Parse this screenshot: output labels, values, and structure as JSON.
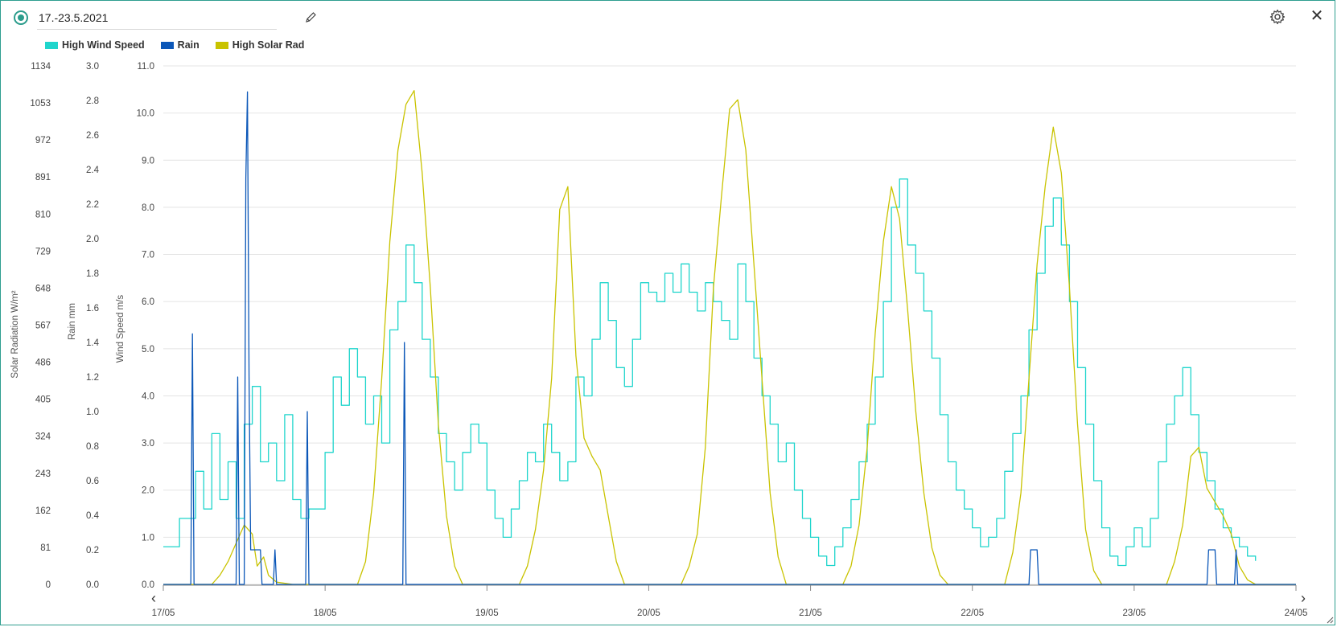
{
  "header": {
    "title": "17.-23.5.2021",
    "edit_icon": "pencil-icon",
    "settings_icon": "gear-icon",
    "close_icon": "close-icon",
    "close_glyph": "✕"
  },
  "colors": {
    "wind": "#1fd5cc",
    "rain": "#0b57b8",
    "solar": "#c9c300",
    "accent": "#2b9c8c",
    "grid": "#e4e4e4"
  },
  "chart_data": {
    "type": "line",
    "legend_position": "top-left",
    "grid": true,
    "series": [
      {
        "name": "High Wind Speed",
        "axis": "wind",
        "color": "#1fd5cc"
      },
      {
        "name": "Rain",
        "axis": "rain",
        "color": "#0b57b8"
      },
      {
        "name": "High Solar Rad",
        "axis": "solar",
        "color": "#c9c300"
      }
    ],
    "x_ticks": [
      "17/05",
      "18/05",
      "19/05",
      "20/05",
      "21/05",
      "22/05",
      "23/05",
      "24/05"
    ],
    "x_range": [
      "17/05",
      "24/05"
    ],
    "y_axes": {
      "solar": {
        "label": "Solar Radiation W/m²",
        "range": [
          0,
          1134
        ],
        "ticks": [
          "0",
          "81",
          "162",
          "243",
          "324",
          "405",
          "486",
          "567",
          "648",
          "729",
          "810",
          "891",
          "972",
          "1053",
          "1134"
        ]
      },
      "rain": {
        "label": "Rain mm",
        "range": [
          0,
          3.0
        ],
        "ticks": [
          "0.0",
          "0.2",
          "0.4",
          "0.6",
          "0.8",
          "1.0",
          "1.2",
          "1.4",
          "1.6",
          "1.8",
          "2.0",
          "2.2",
          "2.4",
          "2.6",
          "2.8",
          "3.0"
        ]
      },
      "wind": {
        "label": "Wind Speed m/s",
        "range": [
          0,
          11.0
        ],
        "ticks": [
          "0.0",
          "1.0",
          "2.0",
          "3.0",
          "4.0",
          "5.0",
          "6.0",
          "7.0",
          "8.0",
          "9.0",
          "10.0",
          "11.0"
        ]
      }
    },
    "wind_points": [
      [
        0.0,
        0.8
      ],
      [
        0.1,
        1.4
      ],
      [
        0.2,
        2.4
      ],
      [
        0.25,
        1.6
      ],
      [
        0.3,
        3.2
      ],
      [
        0.35,
        1.8
      ],
      [
        0.4,
        2.6
      ],
      [
        0.45,
        1.4
      ],
      [
        0.5,
        3.4
      ],
      [
        0.55,
        4.2
      ],
      [
        0.6,
        2.6
      ],
      [
        0.65,
        3.0
      ],
      [
        0.7,
        2.2
      ],
      [
        0.75,
        3.6
      ],
      [
        0.8,
        1.8
      ],
      [
        0.85,
        1.4
      ],
      [
        0.9,
        1.6
      ],
      [
        1.0,
        2.8
      ],
      [
        1.05,
        4.4
      ],
      [
        1.1,
        3.8
      ],
      [
        1.15,
        5.0
      ],
      [
        1.2,
        4.4
      ],
      [
        1.25,
        3.4
      ],
      [
        1.3,
        4.0
      ],
      [
        1.35,
        3.0
      ],
      [
        1.4,
        5.4
      ],
      [
        1.45,
        6.0
      ],
      [
        1.5,
        7.2
      ],
      [
        1.55,
        6.4
      ],
      [
        1.6,
        5.2
      ],
      [
        1.65,
        4.4
      ],
      [
        1.7,
        3.2
      ],
      [
        1.75,
        2.6
      ],
      [
        1.8,
        2.0
      ],
      [
        1.85,
        2.8
      ],
      [
        1.9,
        3.4
      ],
      [
        1.95,
        3.0
      ],
      [
        2.0,
        2.0
      ],
      [
        2.05,
        1.4
      ],
      [
        2.1,
        1.0
      ],
      [
        2.15,
        1.6
      ],
      [
        2.2,
        2.2
      ],
      [
        2.25,
        2.8
      ],
      [
        2.3,
        2.6
      ],
      [
        2.35,
        3.4
      ],
      [
        2.4,
        2.8
      ],
      [
        2.45,
        2.2
      ],
      [
        2.5,
        2.6
      ],
      [
        2.55,
        4.4
      ],
      [
        2.6,
        4.0
      ],
      [
        2.65,
        5.2
      ],
      [
        2.7,
        6.4
      ],
      [
        2.75,
        5.6
      ],
      [
        2.8,
        4.6
      ],
      [
        2.85,
        4.2
      ],
      [
        2.9,
        5.2
      ],
      [
        2.95,
        6.4
      ],
      [
        3.0,
        6.2
      ],
      [
        3.05,
        6.0
      ],
      [
        3.1,
        6.6
      ],
      [
        3.15,
        6.2
      ],
      [
        3.2,
        6.8
      ],
      [
        3.25,
        6.2
      ],
      [
        3.3,
        5.8
      ],
      [
        3.35,
        6.4
      ],
      [
        3.4,
        6.0
      ],
      [
        3.45,
        5.6
      ],
      [
        3.5,
        5.2
      ],
      [
        3.55,
        6.8
      ],
      [
        3.6,
        6.0
      ],
      [
        3.65,
        4.8
      ],
      [
        3.7,
        4.0
      ],
      [
        3.75,
        3.4
      ],
      [
        3.8,
        2.6
      ],
      [
        3.85,
        3.0
      ],
      [
        3.9,
        2.0
      ],
      [
        3.95,
        1.4
      ],
      [
        4.0,
        1.0
      ],
      [
        4.05,
        0.6
      ],
      [
        4.1,
        0.4
      ],
      [
        4.15,
        0.8
      ],
      [
        4.2,
        1.2
      ],
      [
        4.25,
        1.8
      ],
      [
        4.3,
        2.6
      ],
      [
        4.35,
        3.4
      ],
      [
        4.4,
        4.4
      ],
      [
        4.45,
        6.0
      ],
      [
        4.5,
        8.0
      ],
      [
        4.55,
        8.6
      ],
      [
        4.6,
        7.2
      ],
      [
        4.65,
        6.6
      ],
      [
        4.7,
        5.8
      ],
      [
        4.75,
        4.8
      ],
      [
        4.8,
        3.6
      ],
      [
        4.85,
        2.6
      ],
      [
        4.9,
        2.0
      ],
      [
        4.95,
        1.6
      ],
      [
        5.0,
        1.2
      ],
      [
        5.05,
        0.8
      ],
      [
        5.1,
        1.0
      ],
      [
        5.15,
        1.4
      ],
      [
        5.2,
        2.4
      ],
      [
        5.25,
        3.2
      ],
      [
        5.3,
        4.0
      ],
      [
        5.35,
        5.4
      ],
      [
        5.4,
        6.6
      ],
      [
        5.45,
        7.6
      ],
      [
        5.5,
        8.2
      ],
      [
        5.55,
        7.2
      ],
      [
        5.6,
        6.0
      ],
      [
        5.65,
        4.6
      ],
      [
        5.7,
        3.4
      ],
      [
        5.75,
        2.2
      ],
      [
        5.8,
        1.2
      ],
      [
        5.85,
        0.6
      ],
      [
        5.9,
        0.4
      ],
      [
        5.95,
        0.8
      ],
      [
        6.0,
        1.2
      ],
      [
        6.05,
        0.8
      ],
      [
        6.1,
        1.4
      ],
      [
        6.15,
        2.6
      ],
      [
        6.2,
        3.4
      ],
      [
        6.25,
        4.0
      ],
      [
        6.3,
        4.6
      ],
      [
        6.35,
        3.6
      ],
      [
        6.4,
        2.8
      ],
      [
        6.45,
        2.2
      ],
      [
        6.5,
        1.6
      ],
      [
        6.55,
        1.2
      ],
      [
        6.6,
        1.0
      ],
      [
        6.65,
        0.8
      ],
      [
        6.7,
        0.6
      ],
      [
        6.75,
        0.5
      ]
    ],
    "solar_points": [
      [
        0.0,
        0
      ],
      [
        0.3,
        0
      ],
      [
        0.35,
        20
      ],
      [
        0.4,
        50
      ],
      [
        0.45,
        90
      ],
      [
        0.5,
        130
      ],
      [
        0.55,
        110
      ],
      [
        0.58,
        40
      ],
      [
        0.62,
        60
      ],
      [
        0.65,
        20
      ],
      [
        0.7,
        5
      ],
      [
        0.8,
        0
      ],
      [
        1.2,
        0
      ],
      [
        1.25,
        50
      ],
      [
        1.3,
        200
      ],
      [
        1.35,
        450
      ],
      [
        1.4,
        750
      ],
      [
        1.45,
        950
      ],
      [
        1.5,
        1050
      ],
      [
        1.55,
        1080
      ],
      [
        1.6,
        900
      ],
      [
        1.65,
        650
      ],
      [
        1.7,
        350
      ],
      [
        1.75,
        150
      ],
      [
        1.8,
        40
      ],
      [
        1.85,
        0
      ],
      [
        2.2,
        0
      ],
      [
        2.25,
        40
      ],
      [
        2.3,
        120
      ],
      [
        2.35,
        250
      ],
      [
        2.4,
        450
      ],
      [
        2.45,
        820
      ],
      [
        2.5,
        870
      ],
      [
        2.55,
        500
      ],
      [
        2.6,
        320
      ],
      [
        2.65,
        280
      ],
      [
        2.7,
        250
      ],
      [
        2.75,
        150
      ],
      [
        2.8,
        50
      ],
      [
        2.85,
        0
      ],
      [
        3.2,
        0
      ],
      [
        3.25,
        40
      ],
      [
        3.3,
        110
      ],
      [
        3.35,
        300
      ],
      [
        3.4,
        650
      ],
      [
        3.45,
        850
      ],
      [
        3.5,
        1040
      ],
      [
        3.55,
        1060
      ],
      [
        3.6,
        950
      ],
      [
        3.65,
        700
      ],
      [
        3.7,
        450
      ],
      [
        3.75,
        200
      ],
      [
        3.8,
        60
      ],
      [
        3.85,
        0
      ],
      [
        4.2,
        0
      ],
      [
        4.25,
        40
      ],
      [
        4.3,
        130
      ],
      [
        4.35,
        300
      ],
      [
        4.4,
        550
      ],
      [
        4.45,
        750
      ],
      [
        4.5,
        870
      ],
      [
        4.55,
        800
      ],
      [
        4.6,
        600
      ],
      [
        4.65,
        380
      ],
      [
        4.7,
        200
      ],
      [
        4.75,
        80
      ],
      [
        4.8,
        20
      ],
      [
        4.85,
        0
      ],
      [
        5.2,
        0
      ],
      [
        5.25,
        70
      ],
      [
        5.3,
        200
      ],
      [
        5.35,
        450
      ],
      [
        5.4,
        700
      ],
      [
        5.45,
        870
      ],
      [
        5.5,
        1000
      ],
      [
        5.55,
        900
      ],
      [
        5.6,
        650
      ],
      [
        5.65,
        350
      ],
      [
        5.7,
        120
      ],
      [
        5.75,
        30
      ],
      [
        5.8,
        0
      ],
      [
        6.2,
        0
      ],
      [
        6.25,
        50
      ],
      [
        6.3,
        130
      ],
      [
        6.35,
        280
      ],
      [
        6.4,
        300
      ],
      [
        6.45,
        210
      ],
      [
        6.5,
        180
      ],
      [
        6.55,
        150
      ],
      [
        6.6,
        110
      ],
      [
        6.65,
        40
      ],
      [
        6.7,
        10
      ],
      [
        6.75,
        0
      ],
      [
        7.0,
        0
      ]
    ],
    "rain_points": [
      [
        0.0,
        0
      ],
      [
        0.17,
        0
      ],
      [
        0.18,
        1.45
      ],
      [
        0.19,
        0
      ],
      [
        0.45,
        0
      ],
      [
        0.46,
        1.2
      ],
      [
        0.47,
        0
      ],
      [
        0.5,
        0
      ],
      [
        0.51,
        2.35
      ],
      [
        0.52,
        2.85
      ],
      [
        0.53,
        1.2
      ],
      [
        0.54,
        0.2
      ],
      [
        0.6,
        0.2
      ],
      [
        0.61,
        0
      ],
      [
        0.68,
        0
      ],
      [
        0.69,
        0.2
      ],
      [
        0.7,
        0
      ],
      [
        0.88,
        0
      ],
      [
        0.89,
        1.0
      ],
      [
        0.9,
        0
      ],
      [
        1.48,
        0
      ],
      [
        1.49,
        1.4
      ],
      [
        1.5,
        0
      ],
      [
        5.35,
        0
      ],
      [
        5.36,
        0.2
      ],
      [
        5.4,
        0.2
      ],
      [
        5.41,
        0
      ],
      [
        6.45,
        0
      ],
      [
        6.46,
        0.2
      ],
      [
        6.5,
        0.2
      ],
      [
        6.51,
        0
      ],
      [
        6.62,
        0
      ],
      [
        6.63,
        0.2
      ],
      [
        6.64,
        0
      ],
      [
        7.0,
        0
      ]
    ]
  }
}
